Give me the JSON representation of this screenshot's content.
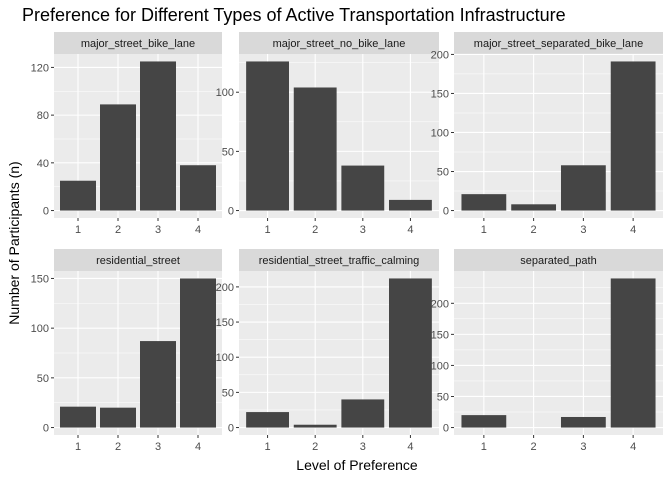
{
  "chart_data": {
    "type": "bar",
    "title": "Preference for Different Types of Active Transportation Infrastructure",
    "xlabel": "Level of Preference",
    "ylabel": "Number of Participants (n)",
    "grid": true,
    "bar_color": "#454545",
    "panel_background": "#ebebeb",
    "strip_background": "#d9d9d9",
    "gridline_color": "#ffffff",
    "categories": [
      "1",
      "2",
      "3",
      "4"
    ],
    "panels": [
      {
        "name": "major_street_bike_lane",
        "values": [
          25,
          89,
          125,
          38
        ],
        "ylim": [
          -6.25,
          131.25
        ],
        "yticks": [
          0,
          40,
          80,
          120
        ]
      },
      {
        "name": "major_street_no_bike_lane",
        "values": [
          126,
          104,
          38,
          9
        ],
        "ylim": [
          -6.3,
          132.3
        ],
        "yticks": [
          0,
          50,
          100
        ]
      },
      {
        "name": "major_street_separated_bike_lane",
        "values": [
          21,
          8,
          58,
          191
        ],
        "ylim": [
          -9.55,
          200.55
        ],
        "yticks": [
          0,
          50,
          100,
          150,
          200
        ]
      },
      {
        "name": "residential_street",
        "values": [
          21,
          20,
          87,
          150
        ],
        "ylim": [
          -7.5,
          157.5
        ],
        "yticks": [
          0,
          50,
          100,
          150
        ]
      },
      {
        "name": "residential_street_traffic_calming",
        "values": [
          22,
          4,
          40,
          212
        ],
        "ylim": [
          -10.6,
          222.6
        ],
        "yticks": [
          0,
          50,
          100,
          150,
          200
        ]
      },
      {
        "name": "separated_path",
        "values": [
          20,
          0,
          17,
          240
        ],
        "ylim": [
          -12,
          252
        ],
        "yticks": [
          0,
          50,
          100,
          150,
          200
        ]
      }
    ]
  }
}
